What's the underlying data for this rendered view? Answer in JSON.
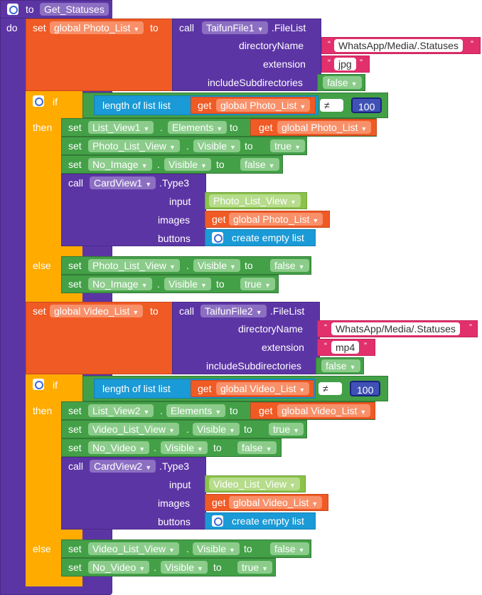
{
  "procedure": {
    "keyword_to": "to",
    "name": "Get_Statuses",
    "keyword_do": "do"
  },
  "kw": {
    "set": "set",
    "to": "to",
    "call": "call",
    "get": "get",
    "if": "if",
    "then": "then",
    "else": "else",
    "length_of_list": "length of list  list",
    "create_empty_list": "create empty list",
    "dot": "."
  },
  "photo_section": {
    "set_var": "global Photo_List",
    "component": "TaifunFile1",
    "method": ".FileList",
    "params": [
      {
        "label": "directoryName",
        "value": "WhatsApp/Media/.Statuses"
      },
      {
        "label": "extension",
        "value": "jpg"
      },
      {
        "label": "includeSubdirectories",
        "value": "false"
      }
    ],
    "if_get": "global Photo_List",
    "compare_op": "≠",
    "compare_value": "100",
    "then": [
      {
        "comp": "List_View1",
        "prop": "Elements",
        "value": "global Photo_List"
      },
      {
        "comp": "Photo_List_View",
        "prop": "Visible",
        "value": "true"
      },
      {
        "comp": "No_Image",
        "prop": "Visible",
        "value": "false"
      }
    ],
    "card_call": {
      "component": "CardView1",
      "method": ".Type3",
      "params": [
        {
          "label": "input",
          "value": "Photo_List_View"
        },
        {
          "label": "images",
          "value": "global Photo_List"
        },
        {
          "label": "buttons",
          "value": "create empty list"
        }
      ]
    },
    "else": [
      {
        "comp": "Photo_List_View",
        "prop": "Visible",
        "value": "false"
      },
      {
        "comp": "No_Image",
        "prop": "Visible",
        "value": "true"
      }
    ]
  },
  "video_section": {
    "set_var": "global Video_List",
    "component": "TaifunFile2",
    "method": ".FileList",
    "params": [
      {
        "label": "directoryName",
        "value": "WhatsApp/Media/.Statuses"
      },
      {
        "label": "extension",
        "value": "mp4"
      },
      {
        "label": "includeSubdirectories",
        "value": "false"
      }
    ],
    "if_get": "global Video_List",
    "compare_op": "≠",
    "compare_value": "100",
    "then": [
      {
        "comp": "List_View2",
        "prop": "Elements",
        "value": "global Video_List"
      },
      {
        "comp": "Video_List_View",
        "prop": "Visible",
        "value": "true"
      },
      {
        "comp": "No_Video",
        "prop": "Visible",
        "value": "false"
      }
    ],
    "card_call": {
      "component": "CardView2",
      "method": ".Type3",
      "params": [
        {
          "label": "input",
          "value": "Video_List_View"
        },
        {
          "label": "images",
          "value": "global Video_List"
        },
        {
          "label": "buttons",
          "value": "create empty list"
        }
      ]
    },
    "else": [
      {
        "comp": "Video_List_View",
        "prop": "Visible",
        "value": "false"
      },
      {
        "comp": "No_Video",
        "prop": "Visible",
        "value": "true"
      }
    ]
  },
  "colors": {
    "procedure": "#5c35a5",
    "variable": "#f05a24",
    "text": "#e2306c",
    "component": "#43a047",
    "list": "#1a9ad6",
    "control": "#ffab00"
  }
}
